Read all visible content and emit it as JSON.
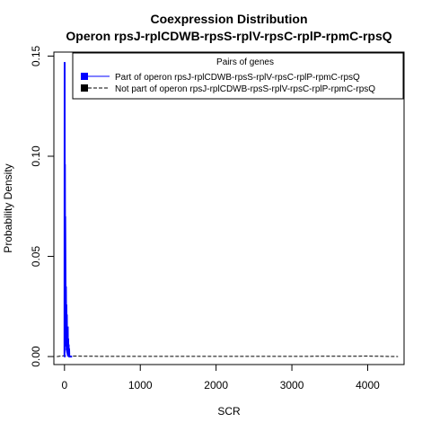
{
  "chart_data": {
    "type": "line",
    "title": "Coexpression Distribution",
    "subtitle": "Operon rpsJ-rplCDWB-rpsS-rplV-rpsC-rplP-rpmC-rpsQ",
    "xlabel": "SCR",
    "ylabel": "Probability Density",
    "xlim": [
      -140,
      4480
    ],
    "ylim": [
      -0.004,
      0.152
    ],
    "x_ticks": [
      0,
      1000,
      2000,
      3000,
      4000
    ],
    "x_tick_labels": [
      "0",
      "1000",
      "2000",
      "3000",
      "4000"
    ],
    "y_ticks": [
      0.0,
      0.05,
      0.1,
      0.15
    ],
    "y_tick_labels": [
      "0.00",
      "0.05",
      "0.10",
      "0.15"
    ],
    "grid": false,
    "legend": {
      "title": "Pairs of genes",
      "placement": "top-right",
      "entries": [
        "Part of operon rpsJ-rplCDWB-rpsS-rplV-rpsC-rplP-rpmC-rpsQ",
        "Not part of operon rpsJ-rplCDWB-rpsS-rplV-rpsC-rplP-rpmC-rpsQ"
      ]
    },
    "series": [
      {
        "name": "Part of operon rpsJ-rplCDWB-rpsS-rplV-rpsC-rplP-rpmC-rpsQ",
        "color": "#0000ff",
        "style": "solid",
        "x": [
          -5,
          0,
          2,
          4,
          6,
          8,
          10,
          13,
          16,
          19,
          22,
          25,
          28,
          31,
          34,
          37,
          40,
          43,
          46,
          49,
          52,
          55,
          58,
          61,
          64,
          70,
          80,
          100
        ],
        "y": [
          0,
          0,
          0.147,
          0.03,
          0.096,
          0.02,
          0.07,
          0.042,
          0.005,
          0.035,
          0.01,
          0.026,
          0.003,
          0.021,
          0.002,
          0.014,
          0.001,
          0.015,
          0.0,
          0.009,
          0.0,
          0.006,
          0.0,
          0.004,
          0.0,
          0.0,
          0.0,
          0.0
        ]
      },
      {
        "name": "Not part of operon rpsJ-rplCDWB-rpsS-rplV-rpsC-rplP-rpmC-rpsQ",
        "color": "#000000",
        "style": "dashed",
        "x": [
          -100,
          0,
          50,
          100,
          500,
          1000,
          2000,
          3000,
          3800,
          4000,
          4200,
          4400
        ],
        "y": [
          0,
          0.0004,
          0.0003,
          0.0002,
          0.0001,
          0.0001,
          0.0001,
          0.0001,
          0.00015,
          0.0002,
          0.0001,
          0.0
        ]
      }
    ]
  }
}
